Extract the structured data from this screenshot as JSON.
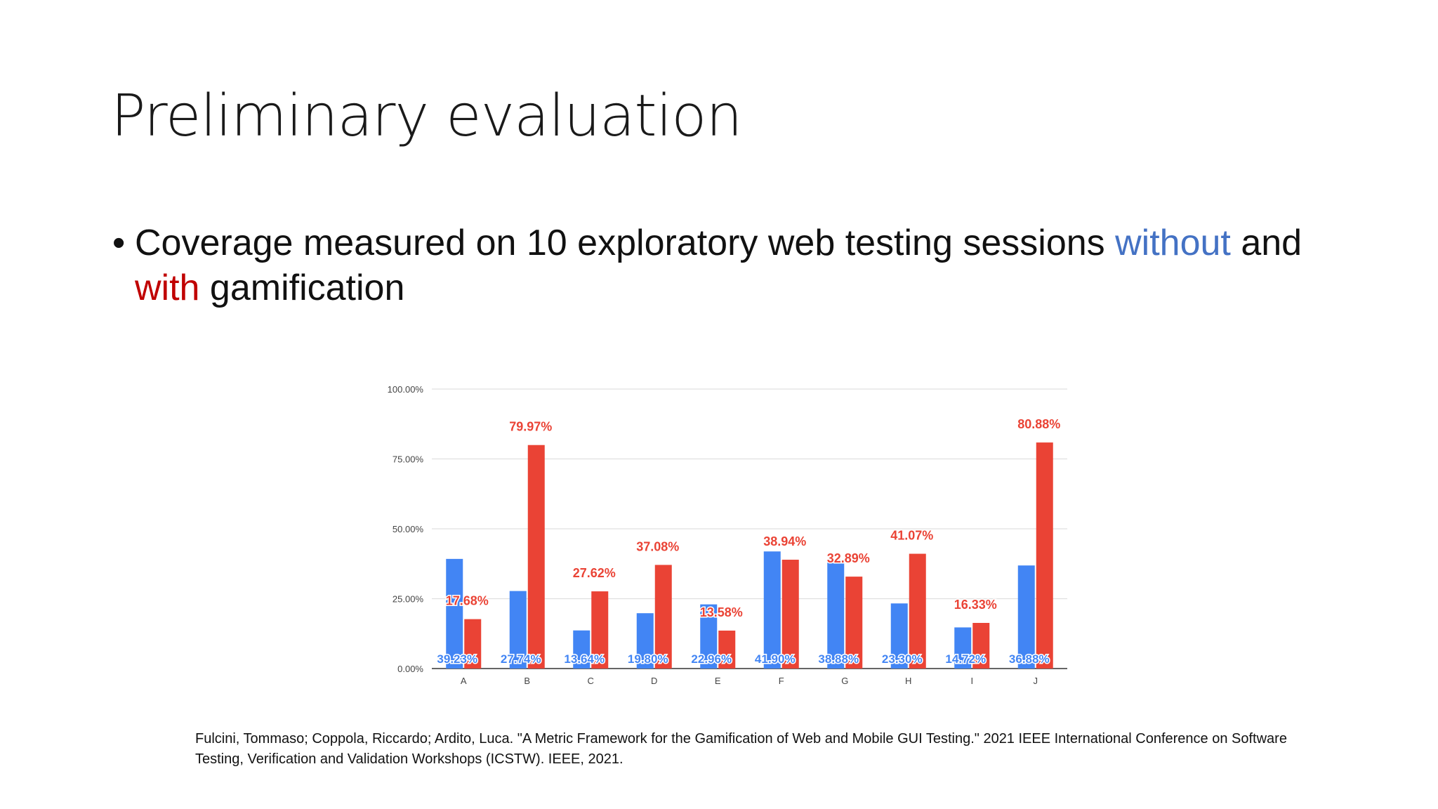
{
  "slide": {
    "title": "Preliminary evaluation",
    "bullet": {
      "marker": "•",
      "part1": "Coverage measured on 10 exploratory web testing sessions ",
      "without": "without",
      "part2": " and ",
      "with": "with",
      "part3": " gamification"
    },
    "citation": "Fulcini, Tommaso; Coppola, Riccardo; Ardito, Luca. \"A Metric Framework for the Gamification of Web and Mobile GUI Testing.\" 2021 IEEE International Conference on Software Testing, Verification and Validation Workshops (ICSTW). IEEE, 2021."
  },
  "colors": {
    "without": "#4285f4",
    "with": "#ea4335",
    "without_text": "#4472c4",
    "with_text": "#c00000",
    "grid": "#e0e0e0",
    "axis_text": "#444444"
  },
  "chart_data": {
    "type": "bar",
    "categories": [
      "A",
      "B",
      "C",
      "D",
      "E",
      "F",
      "G",
      "H",
      "I",
      "J"
    ],
    "series": [
      {
        "values": [
          39.23,
          27.74,
          13.64,
          19.8,
          22.96,
          41.9,
          38.88,
          23.3,
          14.72,
          36.88
        ],
        "labels": [
          "39.23%",
          "27.74%",
          "13.64%",
          "19.80%",
          "22.96%",
          "41.90%",
          "38.88%",
          "23.30%",
          "14.72%",
          "36.88%"
        ],
        "color": "#4285f4"
      },
      {
        "values": [
          17.68,
          79.97,
          27.62,
          37.08,
          13.58,
          38.94,
          32.89,
          41.07,
          16.33,
          80.88
        ],
        "labels": [
          "17.68%",
          "79.97%",
          "27.62%",
          "37.08%",
          "13.58%",
          "38.94%",
          "32.89%",
          "41.07%",
          "16.33%",
          "80.88%"
        ],
        "color": "#ea4335"
      }
    ],
    "yticks": [
      0,
      25,
      50,
      75,
      100
    ],
    "ytick_labels": [
      "0.00%",
      "25.00%",
      "50.00%",
      "75.00%",
      "100.00%"
    ],
    "ylim": [
      0,
      100
    ],
    "grid": true,
    "title": "",
    "xlabel": "",
    "ylabel": ""
  }
}
